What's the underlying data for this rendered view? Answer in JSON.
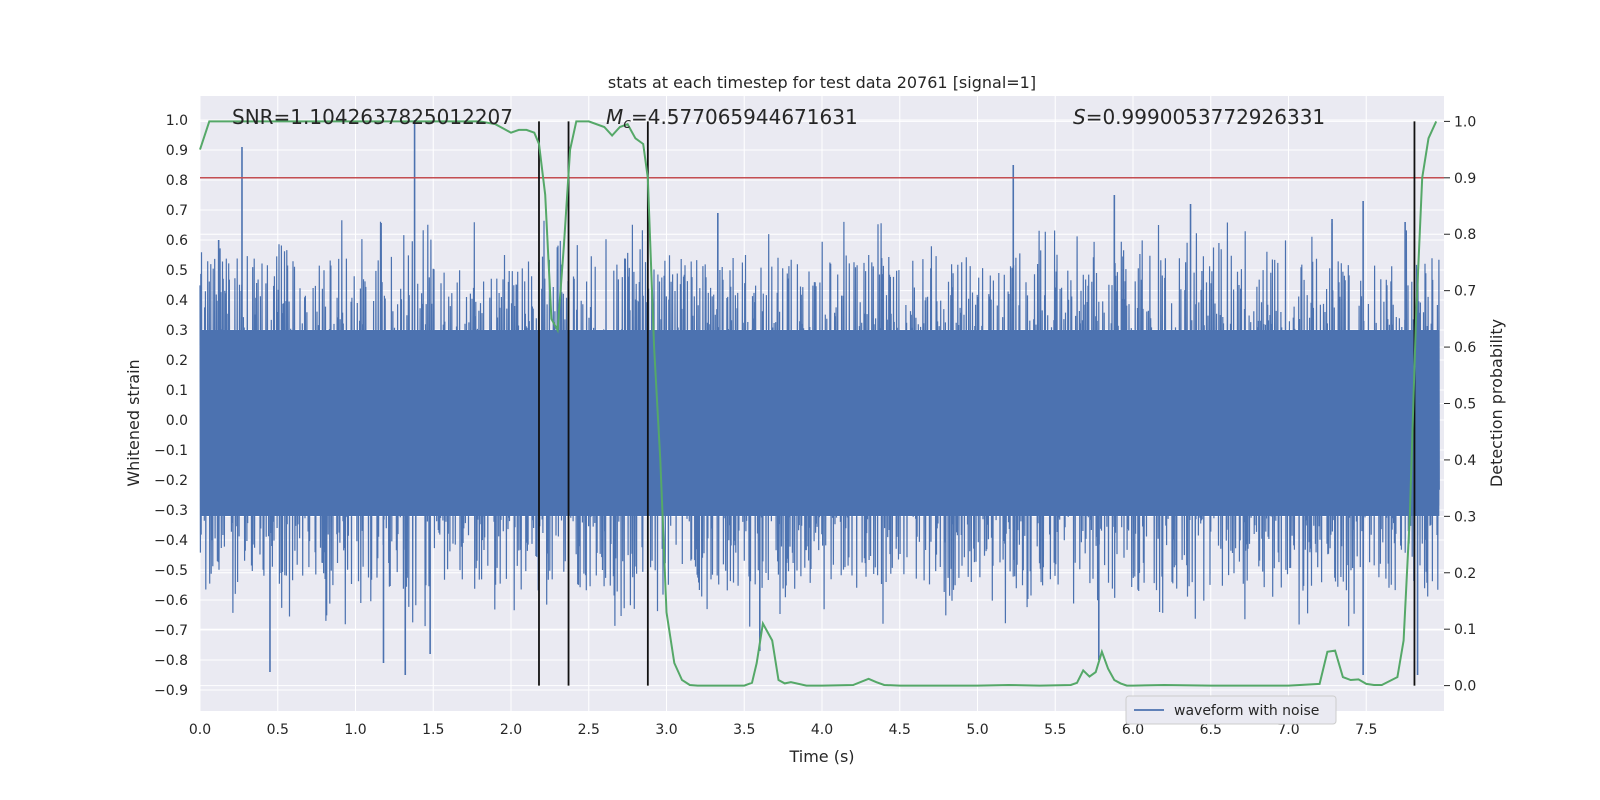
{
  "chart_data": {
    "type": "line",
    "title": "stats at each timestep for test data 20761 [signal=1]",
    "xlabel": "Time (s)",
    "ylabel": "Whitened strain",
    "y2label": "Detection probability",
    "xlim": [
      0.0,
      8.0
    ],
    "ylim": [
      -0.97,
      1.08
    ],
    "y2lim": [
      -0.045,
      1.045
    ],
    "x_ticks": [
      0.0,
      0.5,
      1.0,
      1.5,
      2.0,
      2.5,
      3.0,
      3.5,
      4.0,
      4.5,
      5.0,
      5.5,
      6.0,
      6.5,
      7.0,
      7.5
    ],
    "x_tick_labels": [
      "0.0",
      "0.5",
      "1.0",
      "1.5",
      "2.0",
      "2.5",
      "3.0",
      "3.5",
      "4.0",
      "4.5",
      "5.0",
      "5.5",
      "6.0",
      "6.5",
      "7.0",
      "7.5"
    ],
    "y_ticks": [
      1.0,
      0.9,
      0.8,
      0.7,
      0.6,
      0.5,
      0.4,
      0.3,
      0.2,
      0.1,
      0.0,
      -0.1,
      -0.2,
      -0.3,
      -0.4,
      -0.5,
      -0.6,
      -0.7,
      -0.8,
      -0.9
    ],
    "y_tick_labels": [
      "1.0",
      "0.9",
      "0.8",
      "0.7",
      "0.6",
      "0.5",
      "0.4",
      "0.3",
      "0.2",
      "0.1",
      "0.0",
      "−0.1",
      "−0.2",
      "−0.3",
      "−0.4",
      "−0.5",
      "−0.6",
      "−0.7",
      "−0.8",
      "−0.9"
    ],
    "y2_ticks": [
      1.0,
      0.9,
      0.8,
      0.7,
      0.6,
      0.5,
      0.4,
      0.3,
      0.2,
      0.1,
      0.0
    ],
    "y2_tick_labels": [
      "1.0",
      "0.9",
      "0.8",
      "0.7",
      "0.6",
      "0.5",
      "0.4",
      "0.3",
      "0.2",
      "0.1",
      "0.0"
    ],
    "grid": true,
    "legend": {
      "placement": "lower-right",
      "entries": [
        "waveform with noise"
      ]
    },
    "annotations": {
      "snr": "SNR=1.1042637825012207",
      "mc_symbol": "M",
      "mc_subscript": "c",
      "mc_value": "=4.577065944671631",
      "s_symbol": "S",
      "s_value": "=0.9990053772926331"
    },
    "waveform": {
      "name": "waveform with noise",
      "color": "#4c72b0",
      "band": [
        -0.32,
        0.3
      ],
      "typical_envelope": [
        -0.55,
        0.55
      ],
      "notable_peaks": [
        {
          "x": 0.27,
          "y": 0.91
        },
        {
          "x": 1.38,
          "y": 1.0
        },
        {
          "x": 0.12,
          "y": 0.6
        },
        {
          "x": 0.45,
          "y": -0.84
        },
        {
          "x": 1.32,
          "y": -0.85
        },
        {
          "x": 1.18,
          "y": -0.81
        },
        {
          "x": 1.48,
          "y": -0.78
        },
        {
          "x": 5.23,
          "y": 0.85
        },
        {
          "x": 5.88,
          "y": 0.75
        },
        {
          "x": 6.37,
          "y": 0.72
        },
        {
          "x": 7.28,
          "y": 0.67
        },
        {
          "x": 7.48,
          "y": 0.73
        },
        {
          "x": 7.75,
          "y": 0.66
        },
        {
          "x": 7.83,
          "y": -0.85
        },
        {
          "x": 7.48,
          "y": -0.85
        },
        {
          "x": 5.78,
          "y": -0.8
        },
        {
          "x": 3.6,
          "y": -0.77
        },
        {
          "x": 3.33,
          "y": 0.69
        }
      ]
    },
    "detection_probability": {
      "color": "#55a868",
      "x": [
        0.0,
        0.06,
        0.2,
        0.4,
        0.6,
        0.8,
        1.0,
        1.2,
        1.4,
        1.6,
        1.8,
        1.9,
        2.0,
        2.05,
        2.1,
        2.15,
        2.18,
        2.22,
        2.26,
        2.3,
        2.34,
        2.38,
        2.42,
        2.46,
        2.5,
        2.6,
        2.65,
        2.7,
        2.75,
        2.8,
        2.85,
        2.88,
        2.92,
        2.96,
        3.0,
        3.05,
        3.1,
        3.15,
        3.2,
        3.3,
        3.4,
        3.5,
        3.55,
        3.58,
        3.62,
        3.68,
        3.72,
        3.76,
        3.8,
        3.9,
        4.0,
        4.2,
        4.3,
        4.35,
        4.4,
        4.5,
        5.0,
        5.2,
        5.4,
        5.6,
        5.64,
        5.68,
        5.72,
        5.76,
        5.8,
        5.84,
        5.88,
        5.92,
        5.96,
        6.0,
        6.2,
        6.5,
        7.0,
        7.2,
        7.25,
        7.3,
        7.35,
        7.4,
        7.45,
        7.5,
        7.55,
        7.6,
        7.7,
        7.74,
        7.78,
        7.82,
        7.86,
        7.9,
        7.95
      ],
      "y": [
        0.95,
        1.0,
        1.0,
        1.0,
        1.0,
        1.0,
        1.0,
        1.0,
        1.0,
        1.0,
        1.0,
        0.995,
        0.98,
        0.985,
        0.985,
        0.98,
        0.96,
        0.87,
        0.65,
        0.63,
        0.78,
        0.95,
        1.0,
        1.0,
        1.0,
        0.99,
        0.975,
        0.99,
        0.995,
        0.97,
        0.96,
        0.9,
        0.6,
        0.4,
        0.13,
        0.04,
        0.01,
        0.001,
        0.0,
        0.0,
        0.0,
        0.0,
        0.005,
        0.04,
        0.11,
        0.08,
        0.01,
        0.004,
        0.006,
        0.0,
        0.0,
        0.001,
        0.012,
        0.006,
        0.001,
        0.0,
        0.0,
        0.001,
        0.0,
        0.001,
        0.005,
        0.027,
        0.016,
        0.024,
        0.06,
        0.03,
        0.01,
        0.004,
        0.0,
        0.0,
        0.001,
        0.0,
        0.0,
        0.003,
        0.06,
        0.062,
        0.015,
        0.01,
        0.011,
        0.003,
        0.001,
        0.001,
        0.015,
        0.08,
        0.3,
        0.65,
        0.9,
        0.97,
        1.0
      ]
    },
    "threshold": {
      "color": "#c44e52",
      "y2": 0.9
    },
    "vertical_lines": {
      "color": "#111111",
      "x": [
        2.18,
        2.37,
        2.88,
        7.81
      ]
    }
  }
}
